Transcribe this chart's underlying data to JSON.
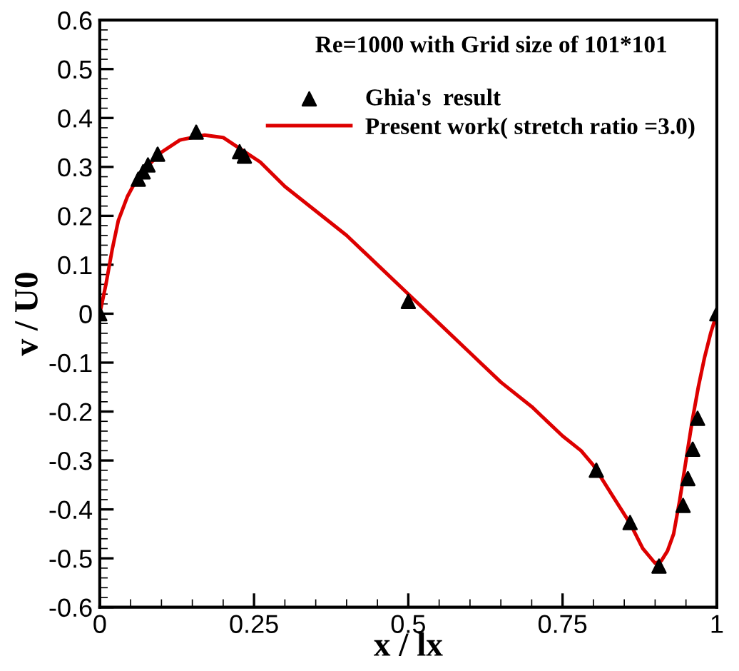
{
  "chart_data": {
    "type": "line",
    "xlabel": "x / lx",
    "ylabel": "v / U0",
    "annotations": [
      "Re=1000 with Grid size of 101*101"
    ],
    "xlim": [
      0,
      1
    ],
    "ylim": [
      -0.6,
      0.6
    ],
    "xticks": [
      0,
      0.25,
      0.5,
      0.75,
      1
    ],
    "yticks": [
      -0.6,
      -0.5,
      -0.4,
      -0.3,
      -0.2,
      -0.1,
      0,
      0.1,
      0.2,
      0.3,
      0.4,
      0.5,
      0.6
    ],
    "grid": false,
    "legend": "top right",
    "series": [
      {
        "name": "Ghia's  result",
        "type": "scatter",
        "marker": "triangle",
        "color": "#000000",
        "x": [
          0.0,
          0.0625,
          0.0703,
          0.0781,
          0.0938,
          0.1563,
          0.2266,
          0.2344,
          0.5,
          0.8047,
          0.8594,
          0.9063,
          0.9453,
          0.9531,
          0.9609,
          0.9688,
          1.0
        ],
        "values": [
          0.0,
          0.275,
          0.29,
          0.304,
          0.326,
          0.371,
          0.331,
          0.322,
          0.025,
          -0.32,
          -0.427,
          -0.516,
          -0.392,
          -0.337,
          -0.277,
          -0.214,
          0.0
        ]
      },
      {
        "name": "Present work( stretch ratio =3.0)",
        "marker": "none",
        "line_style": "solid",
        "color": "#dd0000",
        "x": [
          0,
          0.01,
          0.02,
          0.03,
          0.045,
          0.06,
          0.08,
          0.1,
          0.13,
          0.17,
          0.2,
          0.23,
          0.26,
          0.3,
          0.35,
          0.4,
          0.45,
          0.5,
          0.55,
          0.6,
          0.65,
          0.7,
          0.75,
          0.78,
          0.8,
          0.83,
          0.86,
          0.88,
          0.9,
          0.91,
          0.92,
          0.93,
          0.94,
          0.95,
          0.96,
          0.97,
          0.98,
          0.99,
          1.0
        ],
        "values": [
          0,
          0.06,
          0.13,
          0.19,
          0.24,
          0.275,
          0.305,
          0.33,
          0.355,
          0.365,
          0.36,
          0.335,
          0.31,
          0.26,
          0.21,
          0.16,
          0.1,
          0.04,
          -0.02,
          -0.08,
          -0.14,
          -0.19,
          -0.25,
          -0.28,
          -0.31,
          -0.37,
          -0.43,
          -0.48,
          -0.51,
          -0.505,
          -0.485,
          -0.45,
          -0.38,
          -0.3,
          -0.22,
          -0.15,
          -0.09,
          -0.04,
          0
        ]
      }
    ]
  }
}
